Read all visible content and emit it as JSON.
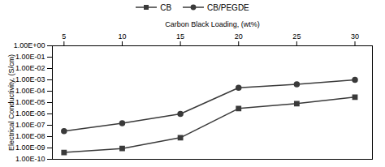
{
  "chart_data": {
    "type": "line",
    "title": "Carbon Black Loading, (wt%)",
    "ylabel": "Electrical Conductivity, (S/cm)",
    "x": [
      5,
      10,
      15,
      20,
      25,
      30
    ],
    "series": [
      {
        "name": "CB",
        "color": "#3a3a3a",
        "marker": "square",
        "values": [
          4e-10,
          9e-10,
          8e-09,
          3e-06,
          8e-06,
          3e-05
        ]
      },
      {
        "name": "CB/PEGDE",
        "color": "#3a3a3a",
        "marker": "circle",
        "values": [
          3e-08,
          1.5e-07,
          1e-06,
          0.0002,
          0.0004,
          0.001
        ]
      }
    ],
    "xlim": [
      4.0,
      31.5
    ],
    "xticks": [
      5,
      10,
      15,
      20,
      25,
      30
    ],
    "ylim": [
      1e-10,
      1
    ],
    "yticks": [
      {
        "value": 1e-10,
        "label": "1.00E-10"
      },
      {
        "value": 1e-09,
        "label": "1.00E-09"
      },
      {
        "value": 1e-08,
        "label": "1.00E-08"
      },
      {
        "value": 1e-07,
        "label": "1.00E-07"
      },
      {
        "value": 1e-06,
        "label": "1.00E-06"
      },
      {
        "value": 1e-05,
        "label": "1.00E-05"
      },
      {
        "value": 0.0001,
        "label": "1.00E-04"
      },
      {
        "value": 0.001,
        "label": "1.00E-03"
      },
      {
        "value": 0.01,
        "label": "1.00E-02"
      },
      {
        "value": 0.1,
        "label": "1.00E-01"
      },
      {
        "value": 1,
        "label": "1.00E+00"
      }
    ],
    "log": "y",
    "grid": false,
    "legend": "top"
  }
}
